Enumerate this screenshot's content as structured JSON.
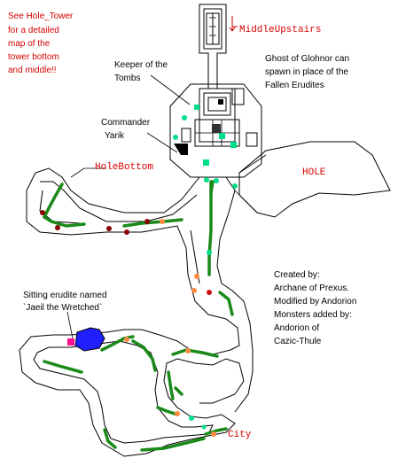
{
  "notes": {
    "see_hole_tower": [
      "See Hole_Tower",
      "for a detailed",
      "map of the",
      "tower bottom",
      "and middle!!"
    ],
    "ghost": [
      "Ghost of Glohnor can",
      "spawn in place of the",
      "Fallen Erudites"
    ],
    "credits": [
      "Created by:",
      "Archane of Prexus.",
      "Modified by Andorion",
      "Monsters added by:",
      "Andorion of",
      "Cazic-Thule"
    ],
    "sitting_erudite": [
      "Sitting erudite named",
      "`Jaeil the Wretched`"
    ]
  },
  "labels": {
    "middle_upstairs": "MiddleUpstairs",
    "keeper": [
      "Keeper of the",
      "Tombs"
    ],
    "commander": [
      "Commander",
      "Yarik"
    ],
    "hole_bottom": "HoleBottom",
    "hole": "HOLE",
    "city": "City"
  },
  "colors": {
    "path": "#1a8a1a",
    "spawn_green": "#00dd88",
    "spawn_orange": "#ff8c40",
    "spawn_red": "#cc1010",
    "spawn_darkred": "#880000",
    "label_red": "#d40000",
    "erudite_blob": "#2020ff",
    "erudite_marker": "#ff1090"
  }
}
